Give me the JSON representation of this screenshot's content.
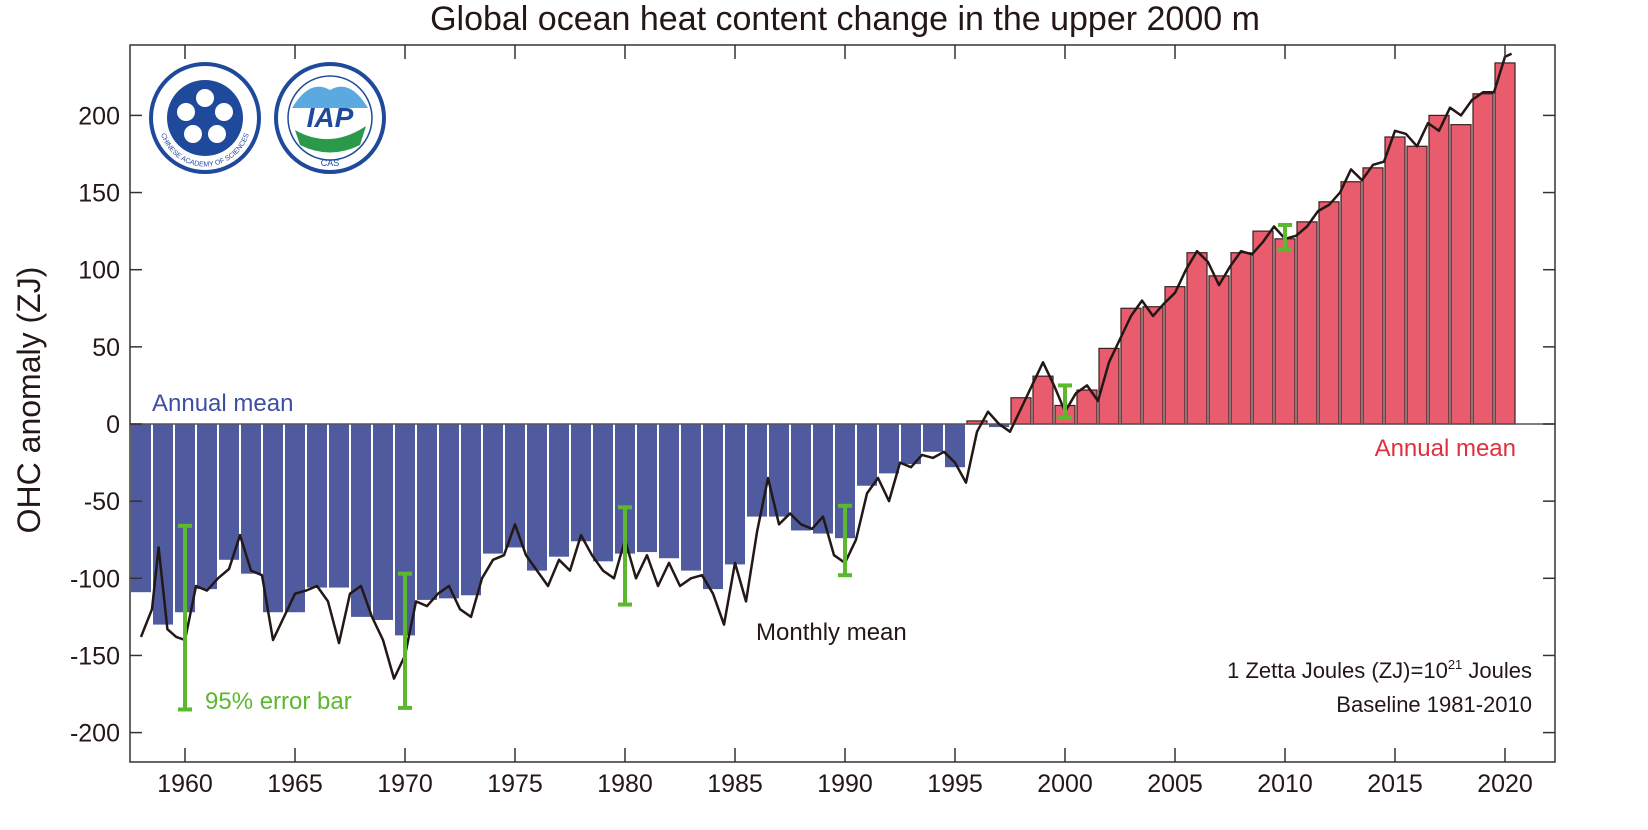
{
  "chart_data": {
    "type": "bar",
    "title": "Global ocean heat content change in the upper 2000 m",
    "xlabel": "",
    "ylabel": "OHC anomaly (ZJ)",
    "xlim": [
      1957.5,
      2022.3
    ],
    "ylim": [
      -200,
      240
    ],
    "x_ticks": [
      1960,
      1965,
      1970,
      1975,
      1980,
      1985,
      1990,
      1995,
      2000,
      2005,
      2010,
      2015,
      2020
    ],
    "y_ticks": [
      -200,
      -150,
      -100,
      -50,
      0,
      50,
      100,
      150,
      200
    ],
    "grid": false,
    "colors": {
      "negative": "#4f5b9e",
      "positive": "#e85c6e",
      "monthly": "#231815",
      "error": "#5cb82e",
      "blue_label": "#3d4fa0",
      "red_label": "#e0303f"
    },
    "annual_mean": {
      "years": [
        1958,
        1959,
        1960,
        1961,
        1962,
        1963,
        1964,
        1965,
        1966,
        1967,
        1968,
        1969,
        1970,
        1971,
        1972,
        1973,
        1974,
        1975,
        1976,
        1977,
        1978,
        1979,
        1980,
        1981,
        1982,
        1983,
        1984,
        1985,
        1986,
        1987,
        1988,
        1989,
        1990,
        1991,
        1992,
        1993,
        1994,
        1995,
        1996,
        1997,
        1998,
        1999,
        2000,
        2001,
        2002,
        2003,
        2004,
        2005,
        2006,
        2007,
        2008,
        2009,
        2010,
        2011,
        2012,
        2013,
        2014,
        2015,
        2016,
        2017,
        2018,
        2019,
        2020
      ],
      "values": [
        -109,
        -130,
        -122,
        -107,
        -88,
        -97,
        -122,
        -122,
        -106,
        -106,
        -125,
        -127,
        -137,
        -114,
        -113,
        -111,
        -84,
        -80,
        -95,
        -86,
        -76,
        -89,
        -84,
        -83,
        -87,
        -95,
        -107,
        -91,
        -60,
        -60,
        -69,
        -71,
        -74,
        -40,
        -32,
        -26,
        -18,
        -28,
        2,
        -2,
        17,
        31,
        12,
        22,
        49,
        75,
        76,
        89,
        111,
        96,
        111,
        125,
        120,
        131,
        144,
        157,
        166,
        186,
        180,
        200,
        194,
        214,
        234
      ]
    },
    "monthly_mean": {
      "x": [
        1958.0,
        1958.5,
        1958.8,
        1959.2,
        1959.6,
        1960.0,
        1960.5,
        1961.0,
        1961.5,
        1962.0,
        1962.5,
        1963.0,
        1963.5,
        1964.0,
        1964.5,
        1965.0,
        1965.5,
        1966.0,
        1966.5,
        1967.0,
        1967.5,
        1968.0,
        1968.5,
        1969.0,
        1969.5,
        1970.0,
        1970.5,
        1971.0,
        1971.5,
        1972.0,
        1972.5,
        1973.0,
        1973.5,
        1974.0,
        1974.5,
        1975.0,
        1975.5,
        1976.0,
        1976.5,
        1977.0,
        1977.5,
        1978.0,
        1978.5,
        1979.0,
        1979.5,
        1980.0,
        1980.5,
        1981.0,
        1981.5,
        1982.0,
        1982.5,
        1983.0,
        1983.5,
        1984.0,
        1984.5,
        1985.0,
        1985.5,
        1986.0,
        1986.5,
        1987.0,
        1987.5,
        1988.0,
        1988.5,
        1989.0,
        1989.5,
        1990.0,
        1990.5,
        1991.0,
        1991.5,
        1992.0,
        1992.5,
        1993.0,
        1993.5,
        1994.0,
        1994.5,
        1995.0,
        1995.5,
        1996.0,
        1996.5,
        1997.0,
        1997.5,
        1998.0,
        1998.5,
        1999.0,
        1999.5,
        2000.0,
        2000.5,
        2001.0,
        2001.5,
        2002.0,
        2002.5,
        2003.0,
        2003.5,
        2004.0,
        2004.5,
        2005.0,
        2005.5,
        2006.0,
        2006.5,
        2007.0,
        2007.5,
        2008.0,
        2008.5,
        2009.0,
        2009.5,
        2010.0,
        2010.5,
        2011.0,
        2011.5,
        2012.0,
        2012.5,
        2013.0,
        2013.5,
        2014.0,
        2014.5,
        2015.0,
        2015.5,
        2016.0,
        2016.5,
        2017.0,
        2017.5,
        2018.0,
        2018.5,
        2019.0,
        2019.5,
        2020.0,
        2020.3
      ],
      "y": [
        -138,
        -120,
        -80,
        -133,
        -138,
        -140,
        -105,
        -108,
        -100,
        -94,
        -72,
        -95,
        -98,
        -140,
        -125,
        -110,
        -108,
        -105,
        -115,
        -142,
        -110,
        -105,
        -125,
        -140,
        -165,
        -150,
        -115,
        -118,
        -110,
        -105,
        -120,
        -125,
        -100,
        -88,
        -85,
        -65,
        -85,
        -95,
        -105,
        -88,
        -95,
        -72,
        -85,
        -95,
        -100,
        -75,
        -100,
        -85,
        -105,
        -90,
        -105,
        -100,
        -98,
        -110,
        -130,
        -90,
        -115,
        -70,
        -35,
        -65,
        -58,
        -65,
        -68,
        -60,
        -85,
        -90,
        -75,
        -45,
        -35,
        -50,
        -25,
        -28,
        -20,
        -22,
        -18,
        -25,
        -38,
        -5,
        8,
        0,
        -5,
        10,
        25,
        40,
        25,
        8,
        20,
        25,
        15,
        40,
        55,
        70,
        80,
        70,
        78,
        85,
        100,
        112,
        105,
        90,
        102,
        112,
        110,
        118,
        128,
        120,
        122,
        128,
        138,
        142,
        150,
        165,
        158,
        168,
        170,
        190,
        188,
        180,
        195,
        190,
        205,
        200,
        210,
        215,
        215,
        238,
        240
      ]
    },
    "error_bars": [
      {
        "year": 1960,
        "low": -185,
        "high": -66
      },
      {
        "year": 1970,
        "low": -184,
        "high": -97
      },
      {
        "year": 1980,
        "low": -117,
        "high": -54
      },
      {
        "year": 1990,
        "low": -98,
        "high": -53
      },
      {
        "year": 2000,
        "low": 4,
        "high": 25
      },
      {
        "year": 2010,
        "low": 113,
        "high": 129
      }
    ],
    "annotations": {
      "annual_mean_neg": "Annual mean",
      "annual_mean_pos": "Annual mean",
      "monthly_mean": "Monthly mean",
      "error_bar": "95% error bar",
      "unit_note_prefix": "1 Zetta Joules (ZJ)=10",
      "unit_note_exp": "21",
      "unit_note_suffix": " Joules",
      "baseline": "Baseline 1981-2010"
    }
  },
  "logos": {
    "cas": "CHINESE ACADEMY OF SCIENCES",
    "iap": "IAP",
    "iap_sub": "CAS"
  }
}
